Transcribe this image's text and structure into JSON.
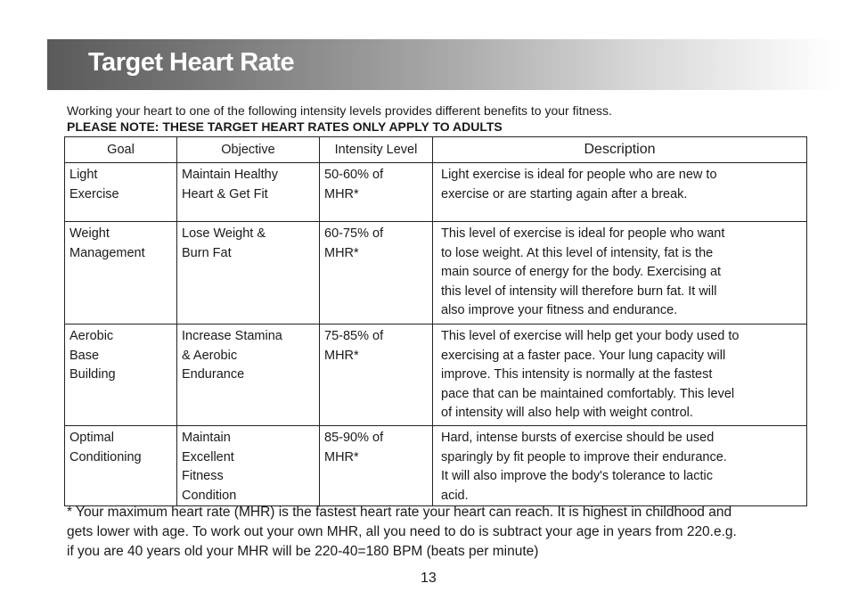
{
  "title": "Target Heart Rate",
  "intro": "Working your heart to one of the following intensity levels provides different benefits to your fitness.",
  "note": "PLEASE NOTE: THESE TARGET HEART RATES ONLY APPLY TO ADULTS",
  "table": {
    "headers": [
      "Goal",
      "Objective",
      "Intensity Level",
      "Description"
    ],
    "rows": [
      {
        "goal": [
          "Light",
          "Exercise"
        ],
        "objective": [
          "Maintain Healthy",
          "Heart & Get Fit"
        ],
        "intensity": [
          "50-60% of",
          "MHR*"
        ],
        "description": [
          "Light exercise is ideal for people who are new to",
          "exercise or are starting again after a break."
        ]
      },
      {
        "goal": [
          "Weight",
          "Management"
        ],
        "objective": [
          "Lose Weight &",
          "Burn Fat"
        ],
        "intensity": [
          "60-75% of",
          "MHR*"
        ],
        "description": [
          "This level of exercise is ideal for people who want",
          "to lose weight. At this level of intensity, fat is the",
          "main source of energy for the body. Exercising at",
          "this level of intensity will therefore burn fat. It will",
          "also improve your fitness and endurance."
        ]
      },
      {
        "goal": [
          "Aerobic",
          "Base",
          "Building"
        ],
        "objective": [
          "Increase Stamina",
          "& Aerobic",
          "Endurance"
        ],
        "intensity": [
          "75-85% of",
          "MHR*"
        ],
        "description": [
          "This level of exercise will help get your body used to",
          "exercising at a faster pace. Your lung capacity will",
          "improve. This intensity is normally at the fastest",
          "pace that can be maintained comfortably. This level",
          "of intensity will also help with weight control."
        ]
      },
      {
        "goal": [
          "Optimal",
          "Conditioning"
        ],
        "objective": [
          "Maintain",
          "Excellent",
          "Fitness",
          "Condition"
        ],
        "intensity": [
          "85-90% of",
          "MHR*"
        ],
        "description": [
          "Hard, intense bursts of exercise should be used",
          "sparingly by fit people to improve their endurance.",
          "It will also improve the body's tolerance to lactic",
          "acid."
        ]
      }
    ]
  },
  "footnote": [
    "* Your maximum heart rate (MHR) is the fastest heart rate your heart can reach.  It is highest in childhood and",
    "gets lower with age.  To work out your own MHR, all you need to do is subtract your age in years from 220.e.g.",
    "if you are 40 years old your MHR will be 220-40=180 BPM (beats per minute)"
  ],
  "page_number": "13"
}
